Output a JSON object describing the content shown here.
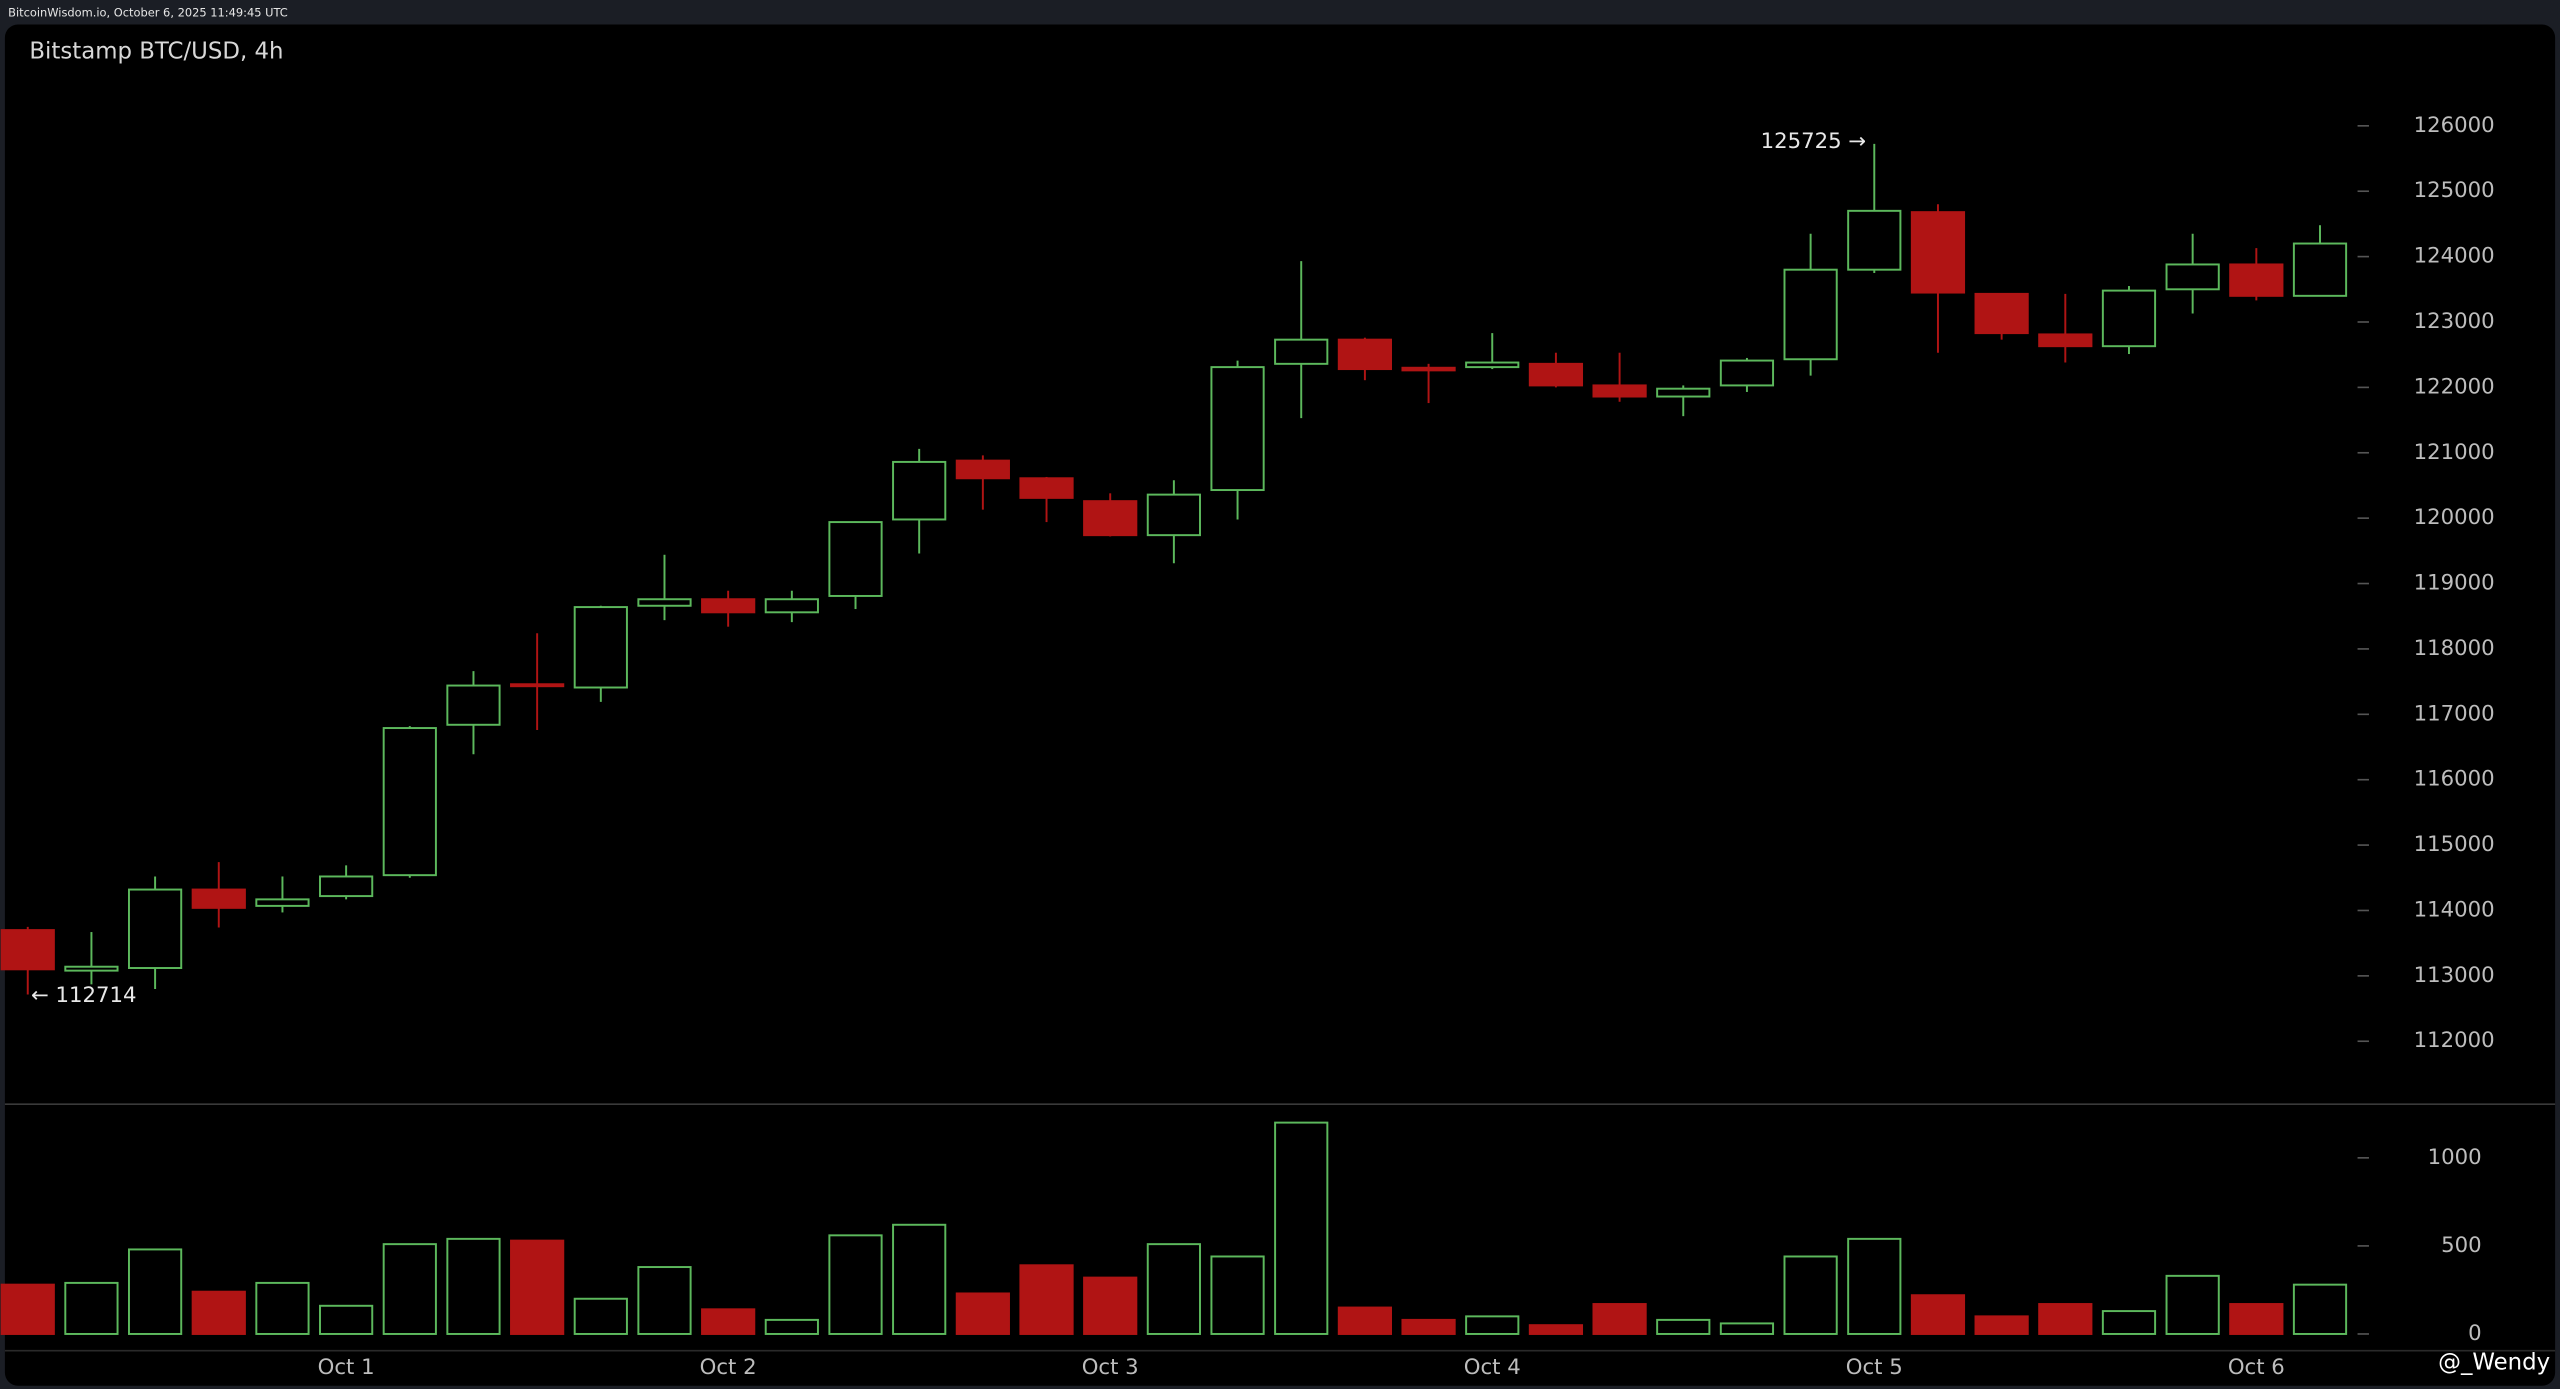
{
  "header": "BitcoinWisdom.io, October 6, 2025 11:49:45 UTC",
  "watermark": "@_Wendy",
  "chart_data": {
    "type": "candlestick",
    "title": "Bitstamp BTC/USD, 4h",
    "categories": [
      null,
      null,
      null,
      null,
      null,
      "Oct 1",
      null,
      null,
      null,
      null,
      null,
      "Oct 2",
      null,
      null,
      null,
      null,
      null,
      "Oct 3",
      null,
      null,
      null,
      null,
      null,
      "Oct 4",
      null,
      null,
      null,
      null,
      null,
      "Oct 5",
      null,
      null,
      null,
      null,
      null,
      "Oct 6",
      null
    ],
    "open": [
      113700,
      113080,
      113120,
      114320,
      114070,
      114220,
      114540,
      116840,
      117460,
      117410,
      118660,
      118760,
      118560,
      118810,
      119980,
      120880,
      120610,
      120260,
      119740,
      120430,
      122360,
      122730,
      122300,
      122310,
      122360,
      122030,
      121860,
      122030,
      122430,
      123800,
      124680,
      123430,
      122810,
      122630,
      123500,
      123880,
      123400
    ],
    "high": [
      113750,
      113670,
      114520,
      114740,
      114520,
      114690,
      116820,
      117660,
      118240,
      118660,
      119440,
      118890,
      118890,
      119950,
      121060,
      120960,
      120630,
      120380,
      120580,
      122410,
      123930,
      122760,
      122360,
      122830,
      122530,
      122530,
      122030,
      122450,
      124350,
      125725,
      124800,
      123430,
      123430,
      123550,
      124350,
      124130,
      124480
    ],
    "low": [
      112714,
      112870,
      112800,
      113740,
      113970,
      114170,
      114500,
      116390,
      116760,
      117190,
      118440,
      118340,
      118410,
      118610,
      119460,
      120130,
      119940,
      119720,
      119310,
      119980,
      121530,
      122110,
      121760,
      122280,
      122000,
      121780,
      121560,
      121930,
      122180,
      123750,
      122530,
      122730,
      122380,
      122510,
      123130,
      123330,
      123400
    ],
    "close": [
      113100,
      113140,
      114320,
      114040,
      114170,
      114520,
      116790,
      117440,
      117430,
      118640,
      118760,
      118560,
      118760,
      119940,
      120860,
      120610,
      120310,
      119740,
      120360,
      122310,
      122730,
      122280,
      122260,
      122380,
      122030,
      121860,
      121980,
      122410,
      123800,
      124700,
      123450,
      122830,
      122630,
      123480,
      123880,
      123400,
      124200
    ],
    "volume": [
      280,
      290,
      480,
      240,
      290,
      160,
      510,
      540,
      530,
      200,
      380,
      140,
      80,
      560,
      620,
      230,
      390,
      320,
      510,
      440,
      1200,
      150,
      80,
      100,
      50,
      170,
      80,
      60,
      440,
      540,
      220,
      100,
      170,
      130,
      330,
      170,
      280
    ],
    "up_color": "#5cb85c",
    "down_color": "#b01414",
    "ylim": [
      111050,
      127550
    ],
    "yticks": [
      112000,
      113000,
      114000,
      115000,
      116000,
      117000,
      118000,
      119000,
      120000,
      121000,
      122000,
      123000,
      124000,
      125000,
      126000
    ],
    "volume_ylim": [
      -90,
      1300
    ],
    "volume_yticks": [
      0,
      500,
      1000
    ],
    "high_label": "125725 →",
    "low_label": "← 112714",
    "grid": false
  }
}
